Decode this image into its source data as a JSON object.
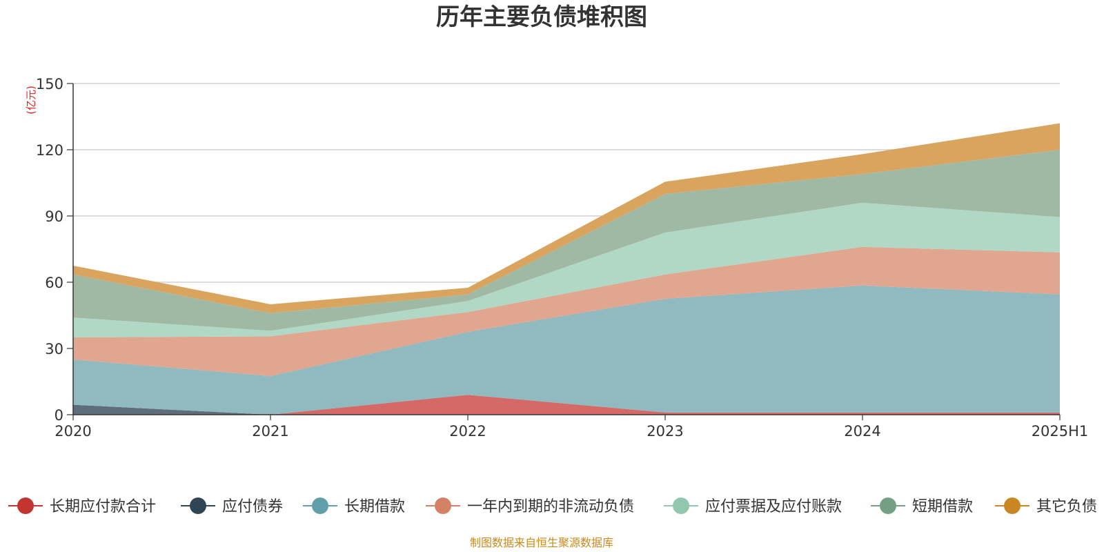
{
  "chart_data": {
    "type": "area",
    "stacked": true,
    "title": "历年主要负债堆积图",
    "unit_label": "(亿元)",
    "x": [
      "2020",
      "2021",
      "2022",
      "2023",
      "2024",
      "2025H1"
    ],
    "ylim": [
      0,
      150
    ],
    "yticks": [
      "0",
      "30",
      "60",
      "90",
      "120",
      "150"
    ],
    "grid": true,
    "legend_position": "bottom",
    "series": [
      {
        "name": "长期应付款合计",
        "values": [
          0,
          0,
          9,
          1,
          1,
          1
        ],
        "color": "#c23531",
        "fill": "#d46a67"
      },
      {
        "name": "应付债券",
        "values": [
          4.5,
          0,
          0,
          0,
          0,
          0
        ],
        "color": "#2f4554",
        "fill": "#5d6e7a"
      },
      {
        "name": "长期借款",
        "values": [
          20.5,
          17.5,
          28.5,
          51.5,
          57.5,
          53.5
        ],
        "color": "#61a0a8",
        "fill": "#90bac0"
      },
      {
        "name": "一年内到期的非流动负债",
        "values": [
          10,
          18,
          9,
          11,
          17.5,
          19
        ],
        "color": "#d48265",
        "fill": "#e0a690"
      },
      {
        "name": "应付票据及应付账款",
        "values": [
          9,
          2.5,
          5,
          19,
          20,
          16
        ],
        "color": "#91c7ae",
        "fill": "#b1d8c5"
      },
      {
        "name": "短期借款",
        "values": [
          19.5,
          8,
          3,
          17.5,
          13,
          30.5
        ],
        "color": "#749f83",
        "fill": "#9fb9a4"
      },
      {
        "name": "其它负债",
        "values": [
          4,
          4,
          3,
          5.5,
          9,
          12
        ],
        "color": "#ca8622",
        "fill": "#d9a55e"
      }
    ]
  },
  "footer": {
    "source": "制图数据来自恒生聚源数据库"
  }
}
